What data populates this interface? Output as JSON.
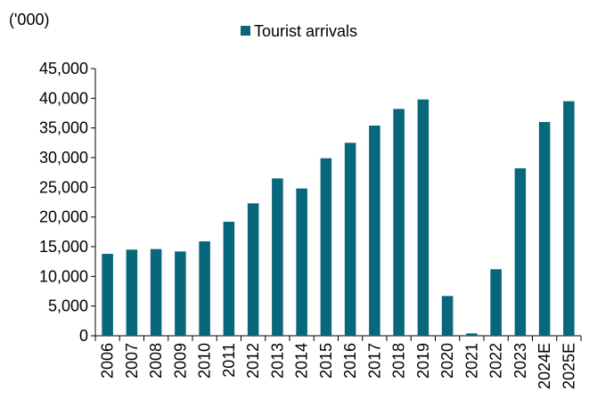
{
  "chart_data": {
    "type": "bar",
    "unit_label": "('000)",
    "categories": [
      "2006",
      "2007",
      "2008",
      "2009",
      "2010",
      "2011",
      "2012",
      "2013",
      "2014",
      "2015",
      "2016",
      "2017",
      "2018",
      "2019",
      "2020",
      "2021",
      "2022",
      "2023",
      "2024E",
      "2025E"
    ],
    "series": [
      {
        "name": "Tourist arrivals",
        "color": "#08677B",
        "values": [
          13800,
          14500,
          14600,
          14200,
          15900,
          19200,
          22300,
          26500,
          24800,
          29900,
          32500,
          35400,
          38200,
          39800,
          6700,
          400,
          11200,
          28200,
          36000,
          39500
        ]
      }
    ],
    "ylim": [
      0,
      45000
    ],
    "yticks": [
      0,
      5000,
      10000,
      15000,
      20000,
      25000,
      30000,
      35000,
      40000,
      45000
    ],
    "ytick_labels": [
      "0",
      "5,000",
      "10,000",
      "15,000",
      "20,000",
      "25,000",
      "30,000",
      "35,000",
      "40,000",
      "45,000"
    ],
    "legend_position": "top-center",
    "grid": false
  }
}
